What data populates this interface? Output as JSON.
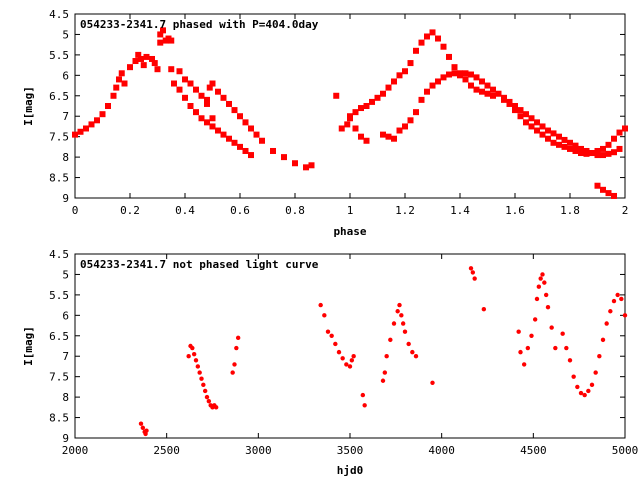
{
  "chart_data": [
    {
      "type": "scatter",
      "title": "054233-2341.7 phased with P=404.0day",
      "xlabel": "phase",
      "ylabel": "I[mag]",
      "xlim": [
        0,
        2
      ],
      "ylim": [
        4.5,
        9
      ],
      "y_inverted": true,
      "x_ticks": [
        "0",
        "0.2",
        "0.4",
        "0.6",
        "0.8",
        "1",
        "1.2",
        "1.4",
        "1.6",
        "1.8",
        "2"
      ],
      "y_ticks": [
        "4.5",
        "5",
        "5.5",
        "6",
        "6.5",
        "7",
        "7.5",
        "8",
        "8.5",
        "9"
      ],
      "marker": "filled-square",
      "color": "#ff0000",
      "grid": false,
      "series": [
        {
          "x": [
            0.0,
            0.02,
            0.04,
            0.06,
            0.08,
            0.1,
            0.12,
            0.14,
            0.15,
            0.16,
            0.17,
            0.18,
            0.2,
            0.22,
            0.23,
            0.24,
            0.25,
            0.26,
            0.28,
            0.29,
            0.3,
            0.31,
            0.32,
            0.34,
            0.35,
            0.38,
            0.4,
            0.42,
            0.44,
            0.46,
            0.48,
            0.49,
            0.5,
            0.52,
            0.54,
            0.56,
            0.58,
            0.6,
            0.62,
            0.64,
            0.66,
            0.68,
            0.72,
            0.76,
            0.8,
            0.84,
            0.86,
            0.36,
            0.38,
            0.4,
            0.42,
            0.44,
            0.46,
            0.48,
            0.5,
            0.52,
            0.54,
            0.56,
            0.58,
            0.6,
            0.62,
            0.64,
            0.5,
            0.48,
            0.31,
            0.33,
            0.35,
            0.95,
            0.97,
            0.99,
            1.0,
            1.02,
            1.04,
            1.06,
            1.08,
            1.1,
            1.12,
            1.14,
            1.16,
            1.18,
            1.2,
            1.22,
            1.24,
            1.26,
            1.28,
            1.3,
            1.32,
            1.34,
            1.36,
            1.38,
            1.4,
            1.42,
            1.44,
            1.46,
            1.48,
            1.5,
            1.52,
            1.56,
            1.58,
            1.6,
            1.62,
            1.64,
            1.66,
            1.68,
            1.7,
            1.72,
            1.74,
            1.76,
            1.78,
            1.8,
            1.82,
            1.84,
            1.86,
            1.88,
            1.9,
            1.92,
            1.94,
            1.96,
            1.98,
            2.0,
            1.12,
            1.14,
            1.16,
            1.18,
            1.2,
            1.22,
            1.24,
            1.26,
            1.28,
            1.3,
            1.32,
            1.34,
            1.36,
            1.38,
            1.4,
            1.42,
            1.44,
            1.46,
            1.48,
            1.5,
            1.52,
            1.54,
            1.56,
            1.58,
            1.6,
            1.62,
            1.64,
            1.66,
            1.68,
            1.7,
            1.72,
            1.74,
            1.76,
            1.78,
            1.8,
            1.82,
            1.84,
            1.86,
            1.88,
            1.9,
            1.92,
            1.94,
            1.96,
            1.98,
            1.9,
            1.92,
            1.94,
            1.96,
            1.0,
            1.02,
            1.04,
            1.06
          ],
          "y": [
            7.45,
            7.38,
            7.3,
            7.2,
            7.1,
            6.95,
            6.75,
            6.5,
            6.3,
            6.1,
            5.95,
            6.2,
            5.8,
            5.65,
            5.5,
            5.6,
            5.75,
            5.55,
            5.6,
            5.7,
            5.85,
            5.2,
            4.9,
            5.1,
            5.15,
            5.9,
            6.1,
            6.2,
            6.35,
            6.5,
            6.6,
            6.3,
            6.2,
            6.4,
            6.55,
            6.7,
            6.85,
            7.0,
            7.15,
            7.3,
            7.45,
            7.6,
            7.85,
            8.0,
            8.15,
            8.25,
            8.2,
            6.2,
            6.35,
            6.55,
            6.75,
            6.9,
            7.05,
            7.15,
            7.25,
            7.35,
            7.45,
            7.55,
            7.65,
            7.75,
            7.85,
            7.95,
            7.05,
            6.7,
            5.0,
            5.15,
            5.85,
            6.5,
            7.3,
            7.2,
            7.05,
            6.9,
            6.8,
            6.75,
            6.65,
            6.55,
            6.45,
            6.3,
            6.15,
            6.0,
            5.9,
            5.7,
            5.4,
            5.2,
            5.05,
            4.95,
            5.1,
            5.3,
            5.55,
            5.8,
            6.0,
            6.1,
            6.25,
            6.35,
            6.4,
            6.45,
            6.5,
            6.6,
            6.7,
            6.85,
            7.0,
            7.15,
            7.25,
            7.35,
            7.45,
            7.55,
            7.65,
            7.7,
            7.75,
            7.8,
            7.85,
            7.9,
            7.92,
            7.9,
            7.85,
            7.8,
            7.7,
            7.55,
            7.4,
            7.3,
            7.45,
            7.5,
            7.55,
            7.35,
            7.25,
            7.1,
            6.9,
            6.6,
            6.4,
            6.25,
            6.15,
            6.05,
            5.98,
            5.95,
            5.95,
            5.95,
            5.98,
            6.05,
            6.15,
            6.25,
            6.35,
            6.45,
            6.55,
            6.65,
            6.75,
            6.85,
            6.95,
            7.05,
            7.15,
            7.25,
            7.35,
            7.42,
            7.5,
            7.58,
            7.65,
            7.72,
            7.8,
            7.85,
            7.9,
            7.95,
            7.95,
            7.92,
            7.88,
            7.8,
            8.7,
            8.8,
            8.88,
            8.95,
            7.0,
            7.3,
            7.5,
            7.6
          ]
        }
      ]
    },
    {
      "type": "scatter",
      "title": "054233-2341.7 not phased light curve",
      "xlabel": "hjd0",
      "ylabel": "I[mag]",
      "xlim": [
        2000,
        5000
      ],
      "ylim": [
        4.5,
        9
      ],
      "y_inverted": true,
      "x_ticks": [
        "2000",
        "2500",
        "3000",
        "3500",
        "4000",
        "4500",
        "5000"
      ],
      "y_ticks": [
        "4.5",
        "5",
        "5.5",
        "6",
        "6.5",
        "7",
        "7.5",
        "8",
        "8.5",
        "9"
      ],
      "marker": "filled-circle",
      "color": "#ff0000",
      "grid": false,
      "series": [
        {
          "x": [
            2360,
            2370,
            2380,
            2385,
            2390,
            2620,
            2630,
            2640,
            2650,
            2660,
            2670,
            2680,
            2690,
            2700,
            2710,
            2720,
            2730,
            2740,
            2750,
            2760,
            2770,
            2860,
            2870,
            2880,
            2890,
            3340,
            3360,
            3380,
            3400,
            3420,
            3440,
            3460,
            3480,
            3500,
            3510,
            3520,
            3570,
            3580,
            3680,
            3690,
            3700,
            3720,
            3740,
            3760,
            3770,
            3780,
            3790,
            3800,
            3820,
            3840,
            3860,
            3950,
            4160,
            4170,
            4180,
            4230,
            4420,
            4430,
            4450,
            4470,
            4490,
            4510,
            4520,
            4530,
            4540,
            4550,
            4560,
            4570,
            4580,
            4600,
            4620,
            4660,
            4680,
            4700,
            4720,
            4740,
            4760,
            4780,
            4800,
            4820,
            4840,
            4860,
            4880,
            4900,
            4920,
            4940,
            4960,
            4980,
            5000
          ],
          "y": [
            8.65,
            8.75,
            8.85,
            8.9,
            8.82,
            7.0,
            6.75,
            6.8,
            6.95,
            7.1,
            7.25,
            7.4,
            7.55,
            7.7,
            7.85,
            8.0,
            8.1,
            8.2,
            8.25,
            8.2,
            8.25,
            7.4,
            7.2,
            6.8,
            6.55,
            5.75,
            6.0,
            6.4,
            6.5,
            6.7,
            6.9,
            7.05,
            7.2,
            7.25,
            7.1,
            7.0,
            7.95,
            8.2,
            7.6,
            7.4,
            7.0,
            6.6,
            6.2,
            5.9,
            5.75,
            6.0,
            6.2,
            6.4,
            6.7,
            6.9,
            7.0,
            7.65,
            4.85,
            4.95,
            5.1,
            5.85,
            6.4,
            6.9,
            7.2,
            6.8,
            6.5,
            6.1,
            5.6,
            5.3,
            5.1,
            5.0,
            5.2,
            5.5,
            5.8,
            6.3,
            6.8,
            6.45,
            6.8,
            7.1,
            7.5,
            7.75,
            7.9,
            7.95,
            7.85,
            7.7,
            7.4,
            7.0,
            6.6,
            6.2,
            5.9,
            5.65,
            5.5,
            5.6,
            6.0
          ]
        }
      ]
    }
  ]
}
